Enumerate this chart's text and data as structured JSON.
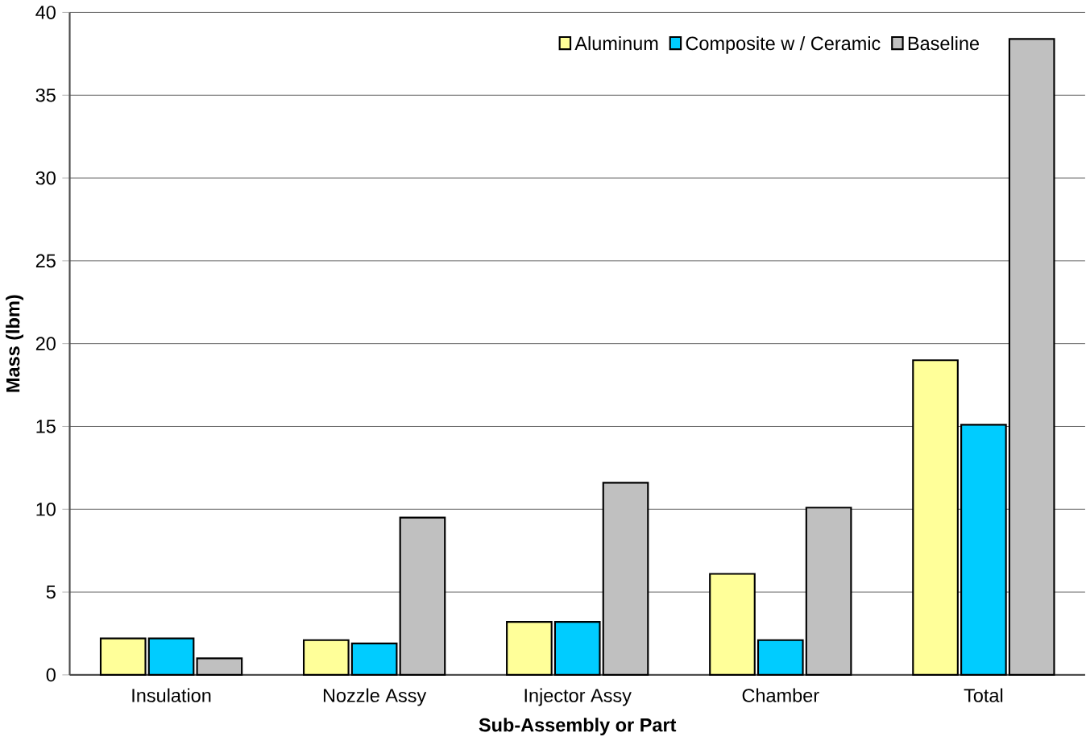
{
  "chart_data": {
    "type": "bar",
    "xlabel": "Sub-Assembly or Part",
    "ylabel": "Mass (lbm)",
    "categories": [
      "Insulation",
      "Nozzle Assy",
      "Injector Assy",
      "Chamber",
      "Total"
    ],
    "series": [
      {
        "name": "Aluminum",
        "color": "#ffff99",
        "values": [
          2.2,
          2.1,
          3.2,
          6.1,
          19.0
        ]
      },
      {
        "name": "Composite w / Ceramic",
        "color": "#00ccff",
        "values": [
          2.2,
          1.9,
          3.2,
          2.1,
          15.1
        ]
      },
      {
        "name": "Baseline",
        "color": "#c0c0c0",
        "values": [
          1.0,
          9.5,
          11.6,
          10.1,
          38.4
        ]
      }
    ],
    "ylim": [
      0,
      40
    ],
    "yticks": [
      0,
      5,
      10,
      15,
      20,
      25,
      30,
      35,
      40
    ],
    "grid": "y",
    "legend": "top right"
  }
}
